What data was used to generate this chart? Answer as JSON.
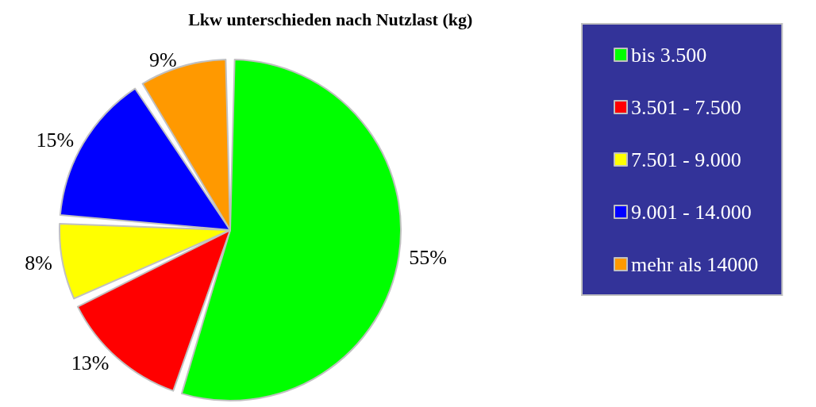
{
  "chart_data": {
    "type": "pie",
    "title": "Lkw unterschieden nach Nutzlast (kg)",
    "categories": [
      "bis 3.500",
      "3.501 - 7.500",
      "7.501 - 9.000",
      "9.001 - 14.000",
      "mehr als 14000"
    ],
    "values": [
      55,
      13,
      8,
      15,
      9
    ],
    "colors": [
      "#00ff00",
      "#ff0000",
      "#ffff00",
      "#0000ff",
      "#ff9900"
    ],
    "value_labels": [
      "55%",
      "13%",
      "8%",
      "15%",
      "9%"
    ],
    "legend": "right"
  }
}
